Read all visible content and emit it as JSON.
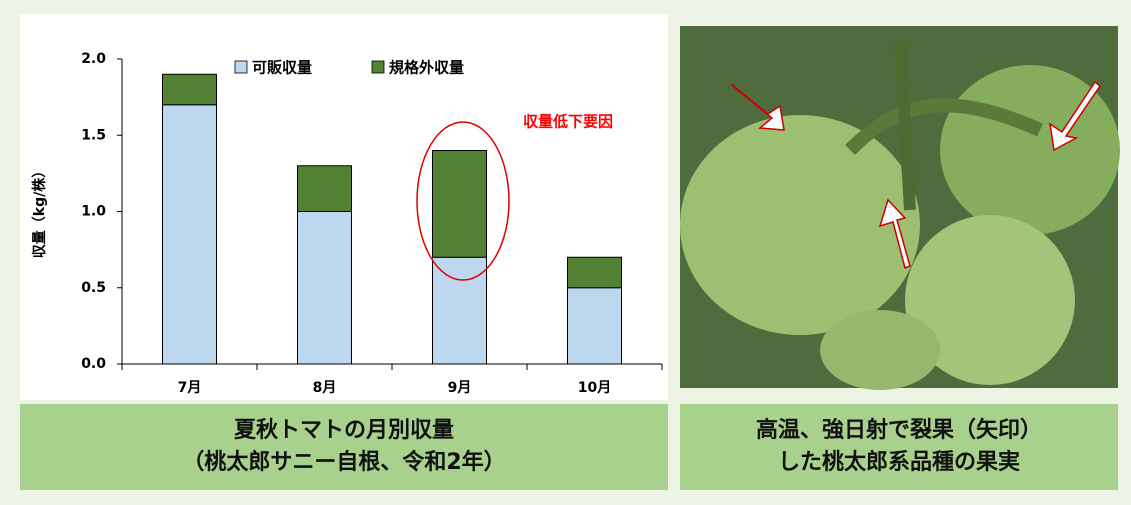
{
  "chart_data": {
    "type": "bar",
    "stacked": true,
    "y_label": "収量（kg/株）",
    "annotation": "収量低下要因",
    "categories": [
      "7月",
      "8月",
      "9月",
      "10月"
    ],
    "series": [
      {
        "name": "可販収量",
        "color": "#bdd7ee",
        "values": [
          1.7,
          1.0,
          0.7,
          0.5
        ]
      },
      {
        "name": "規格外収量",
        "color": "#548235",
        "values": [
          0.2,
          0.3,
          0.7,
          0.2
        ]
      }
    ],
    "ylim": [
      0,
      2
    ],
    "yticks": [
      {
        "value": 0,
        "label": "0.0"
      },
      0.5,
      {
        "value": 1,
        "label": "1.0"
      },
      1.5,
      {
        "value": 2,
        "label": "2.0"
      }
    ],
    "grid": false
  },
  "captions": {
    "left": [
      "夏秋トマトの月別収量",
      "（桃太郎サニー自根、令和2年）"
    ],
    "right": [
      "高温、強日射で裂果（矢印）",
      "した桃太郎系品種の果実"
    ]
  }
}
